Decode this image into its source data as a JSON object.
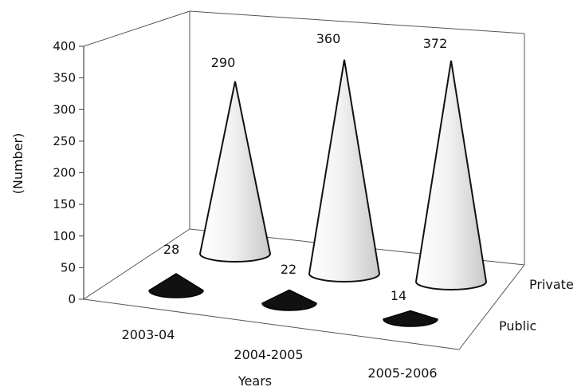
{
  "chart_data": {
    "type": "bar",
    "style": "3d-cone",
    "categories": [
      "2003-04",
      "2004-2005",
      "2005-2006"
    ],
    "series": [
      {
        "name": "Public",
        "values": [
          28,
          22,
          14
        ],
        "color": "#111111"
      },
      {
        "name": "Private",
        "values": [
          290,
          360,
          372
        ],
        "color": "#e9e9e9"
      }
    ],
    "data_labels": {
      "Public": [
        "28",
        "22",
        "14"
      ],
      "Private": [
        "290",
        "360",
        "372"
      ]
    },
    "xlabel": "Years",
    "ylabel": "(Number)",
    "ylim": [
      0,
      400
    ],
    "yticks": [
      0,
      50,
      100,
      150,
      200,
      250,
      300,
      350,
      400
    ],
    "grid": false,
    "legend": "none"
  }
}
